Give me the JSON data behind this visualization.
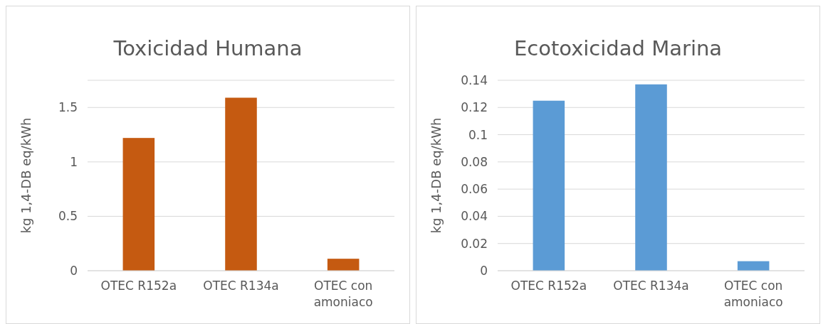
{
  "chart_data": [
    {
      "type": "bar",
      "title": "Toxicidad Humana",
      "ylabel": "kg 1,4-DB eq/kWh",
      "categories": [
        "OTEC R152a",
        "OTEC R134a",
        "OTEC con amoniaco"
      ],
      "values": [
        1.22,
        1.59,
        0.11
      ],
      "color": "#c55a11",
      "ylim": [
        0,
        1.75
      ],
      "yticks": [
        0,
        0.5,
        1,
        1.5,
        {
          "value": 1.75,
          "label": null
        }
      ],
      "grid": "y"
    },
    {
      "type": "bar",
      "title": "Ecotoxicidad Marina",
      "ylabel": "kg 1,4-DB eq/kWh",
      "categories": [
        "OTEC R152a",
        "OTEC R134a",
        "OTEC con amoniaco"
      ],
      "values": [
        0.125,
        0.137,
        0.007
      ],
      "color": "#5b9bd5",
      "ylim": [
        0,
        0.14
      ],
      "yticks": [
        0,
        0.02,
        0.04,
        0.06,
        0.08,
        0.1,
        0.12,
        0.14
      ],
      "grid": "y"
    }
  ]
}
